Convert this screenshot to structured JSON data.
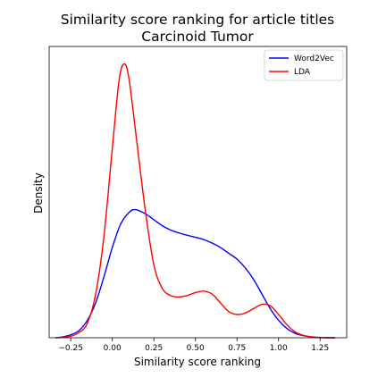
{
  "chart_data": {
    "type": "line",
    "title": "Similarity score ranking for article titles",
    "subtitle": "Carcinoid Tumor",
    "xlabel": "Similarity score ranking",
    "ylabel": "Density",
    "xlim": [
      -0.38,
      1.41
    ],
    "ylim": [
      0,
      1.0
    ],
    "xticks": [
      -0.25,
      0.0,
      0.25,
      0.5,
      0.75,
      1.0,
      1.25
    ],
    "xtick_labels": [
      "−0.25",
      "0.00",
      "0.25",
      "0.50",
      "0.75",
      "1.00",
      "1.25"
    ],
    "yticks_shown": false,
    "grid": false,
    "legend_position": "top-right",
    "series": [
      {
        "name": "Word2Vec",
        "color": "#0000ff",
        "x": [
          -0.34,
          -0.3,
          -0.25,
          -0.2,
          -0.15,
          -0.1,
          -0.05,
          0.0,
          0.05,
          0.1,
          0.14,
          0.2,
          0.25,
          0.3,
          0.35,
          0.4,
          0.45,
          0.5,
          0.55,
          0.6,
          0.65,
          0.7,
          0.75,
          0.8,
          0.85,
          0.9,
          0.95,
          1.0,
          1.05,
          1.1,
          1.15,
          1.2,
          1.25,
          1.3,
          1.34
        ],
        "y": [
          0.0,
          0.003,
          0.01,
          0.025,
          0.06,
          0.12,
          0.21,
          0.31,
          0.39,
          0.43,
          0.44,
          0.425,
          0.405,
          0.385,
          0.37,
          0.36,
          0.352,
          0.345,
          0.337,
          0.325,
          0.31,
          0.29,
          0.27,
          0.24,
          0.2,
          0.15,
          0.1,
          0.06,
          0.032,
          0.015,
          0.007,
          0.003,
          0.001,
          0.0,
          0.0
        ]
      },
      {
        "name": "LDA",
        "color": "#ff0000",
        "x": [
          -0.34,
          -0.3,
          -0.25,
          -0.2,
          -0.15,
          -0.1,
          -0.05,
          0.0,
          0.04,
          0.07,
          0.1,
          0.15,
          0.2,
          0.25,
          0.3,
          0.35,
          0.4,
          0.45,
          0.5,
          0.55,
          0.6,
          0.65,
          0.7,
          0.75,
          0.8,
          0.85,
          0.9,
          0.95,
          1.0,
          1.05,
          1.1,
          1.15,
          1.2,
          1.25,
          1.3,
          1.34
        ],
        "y": [
          0.0,
          0.002,
          0.005,
          0.018,
          0.05,
          0.15,
          0.35,
          0.65,
          0.88,
          0.94,
          0.89,
          0.66,
          0.43,
          0.25,
          0.17,
          0.145,
          0.14,
          0.145,
          0.155,
          0.16,
          0.15,
          0.12,
          0.09,
          0.08,
          0.085,
          0.1,
          0.115,
          0.11,
          0.08,
          0.045,
          0.02,
          0.008,
          0.003,
          0.001,
          0.0,
          0.0
        ]
      }
    ]
  }
}
